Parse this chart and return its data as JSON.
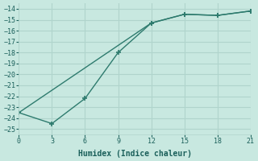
{
  "line1_x": [
    0,
    12,
    15,
    18,
    21
  ],
  "line1_y": [
    -23.5,
    -15.3,
    -14.5,
    -14.6,
    -14.2
  ],
  "line2_x": [
    0,
    3,
    6,
    9,
    12,
    15,
    18,
    21
  ],
  "line2_y": [
    -23.5,
    -24.5,
    -22.2,
    -18.0,
    -15.3,
    -14.5,
    -14.6,
    -14.2
  ],
  "xlabel": "Humidex (Indice chaleur)",
  "ylim": [
    -25.5,
    -13.5
  ],
  "xlim": [
    0,
    21
  ],
  "yticks": [
    -14,
    -15,
    -16,
    -17,
    -18,
    -19,
    -20,
    -21,
    -22,
    -23,
    -24,
    -25
  ],
  "xticks": [
    0,
    3,
    6,
    9,
    12,
    15,
    18,
    21
  ],
  "line_color": "#2e7b6e",
  "bg_color": "#c8e8e0",
  "grid_color": "#b0d4cc",
  "font_color": "#1a5f5a",
  "font_name": "monospace"
}
